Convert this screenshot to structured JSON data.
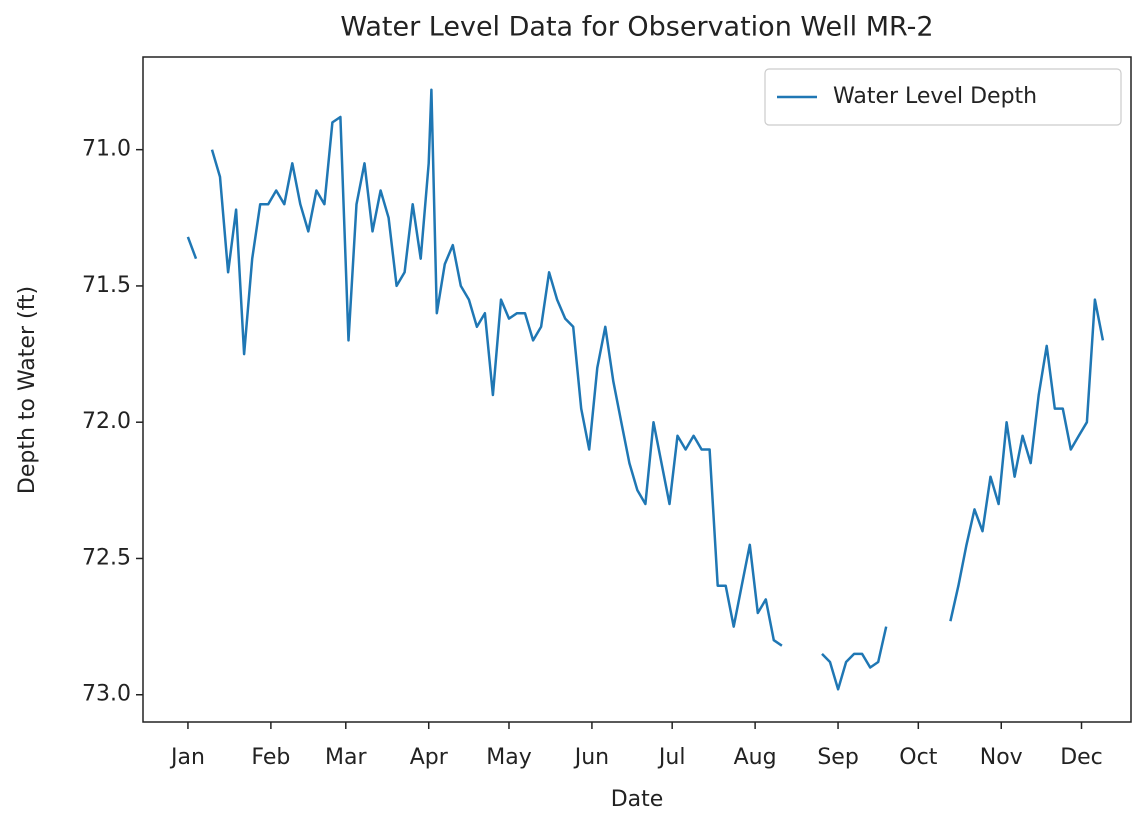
{
  "chart_data": {
    "type": "line",
    "title": "Water Level Data for Observation Well MR-2",
    "x_label": "Date",
    "y_label": "Depth to Water (ft)",
    "xlim": [
      -16.8,
      352.5
    ],
    "xticks": [
      {
        "value": 0,
        "label": "Jan"
      },
      {
        "value": 31,
        "label": "Feb"
      },
      {
        "value": 59,
        "label": "Mar"
      },
      {
        "value": 90,
        "label": "Apr"
      },
      {
        "value": 120,
        "label": "May"
      },
      {
        "value": 151,
        "label": "Jun"
      },
      {
        "value": 181,
        "label": "Jul"
      },
      {
        "value": 212,
        "label": "Aug"
      },
      {
        "value": 243,
        "label": "Sep"
      },
      {
        "value": 273,
        "label": "Oct"
      },
      {
        "value": 304,
        "label": "Nov"
      },
      {
        "value": 334,
        "label": "Dec"
      }
    ],
    "ylim": [
      73.1,
      70.66
    ],
    "yticks": [
      {
        "value": 71,
        "label": "71.0"
      },
      {
        "value": 71.5,
        "label": "71.5"
      },
      {
        "value": 72,
        "label": "72.0"
      },
      {
        "value": 72.5,
        "label": "72.5"
      },
      {
        "value": 73,
        "label": "73.0"
      }
    ],
    "legend": "upper right",
    "x": [
      0,
      3,
      6,
      9,
      12,
      15,
      18,
      21,
      24,
      27,
      30,
      33,
      36,
      39,
      42,
      45,
      48,
      51,
      54,
      57,
      60,
      63,
      66,
      69,
      72,
      75,
      78,
      81,
      84,
      87,
      90,
      91,
      93,
      96,
      99,
      102,
      105,
      108,
      111,
      114,
      117,
      120,
      123,
      126,
      129,
      132,
      135,
      138,
      141,
      144,
      147,
      150,
      153,
      156,
      159,
      162,
      165,
      168,
      171,
      174,
      177,
      180,
      183,
      186,
      189,
      192,
      195,
      198,
      201,
      204,
      207,
      210,
      213,
      216,
      219,
      222,
      225,
      228,
      231,
      234,
      237,
      240,
      243,
      246,
      249,
      252,
      255,
      258,
      261,
      264,
      267,
      270,
      273,
      276,
      279,
      282,
      285,
      288,
      291,
      294,
      297,
      300,
      303,
      306,
      309,
      312,
      315,
      318,
      321,
      324,
      327,
      330,
      333,
      336,
      339,
      342
    ],
    "series": [
      {
        "name": "Water Level Depth",
        "color": "#1f77b4",
        "values": [
          71.32,
          71.4,
          null,
          71.0,
          71.1,
          71.45,
          71.22,
          71.75,
          71.4,
          71.2,
          71.2,
          71.15,
          71.2,
          71.05,
          71.2,
          71.3,
          71.15,
          71.2,
          70.9,
          70.88,
          71.7,
          71.2,
          71.05,
          71.3,
          71.15,
          71.25,
          71.5,
          71.45,
          71.2,
          71.4,
          71.05,
          70.78,
          71.6,
          71.42,
          71.35,
          71.5,
          71.55,
          71.65,
          71.6,
          71.9,
          71.55,
          71.62,
          71.6,
          71.6,
          71.7,
          71.65,
          71.45,
          71.55,
          71.62,
          71.65,
          71.95,
          72.1,
          71.8,
          71.65,
          71.85,
          72.0,
          72.15,
          72.25,
          72.3,
          72.0,
          72.15,
          72.3,
          72.05,
          72.1,
          72.05,
          72.1,
          72.1,
          72.6,
          72.6,
          72.75,
          72.6,
          72.45,
          72.7,
          72.65,
          72.8,
          72.82,
          null,
          null,
          null,
          null,
          72.85,
          72.88,
          72.98,
          72.88,
          72.85,
          72.85,
          72.9,
          72.88,
          72.75,
          null,
          null,
          null,
          null,
          null,
          null,
          null,
          72.73,
          72.6,
          72.45,
          72.32,
          72.4,
          72.2,
          72.3,
          72.0,
          72.2,
          72.05,
          72.15,
          71.9,
          71.72,
          71.95,
          71.95,
          72.1,
          72.05,
          72.0,
          71.55,
          71.7
        ]
      }
    ]
  }
}
